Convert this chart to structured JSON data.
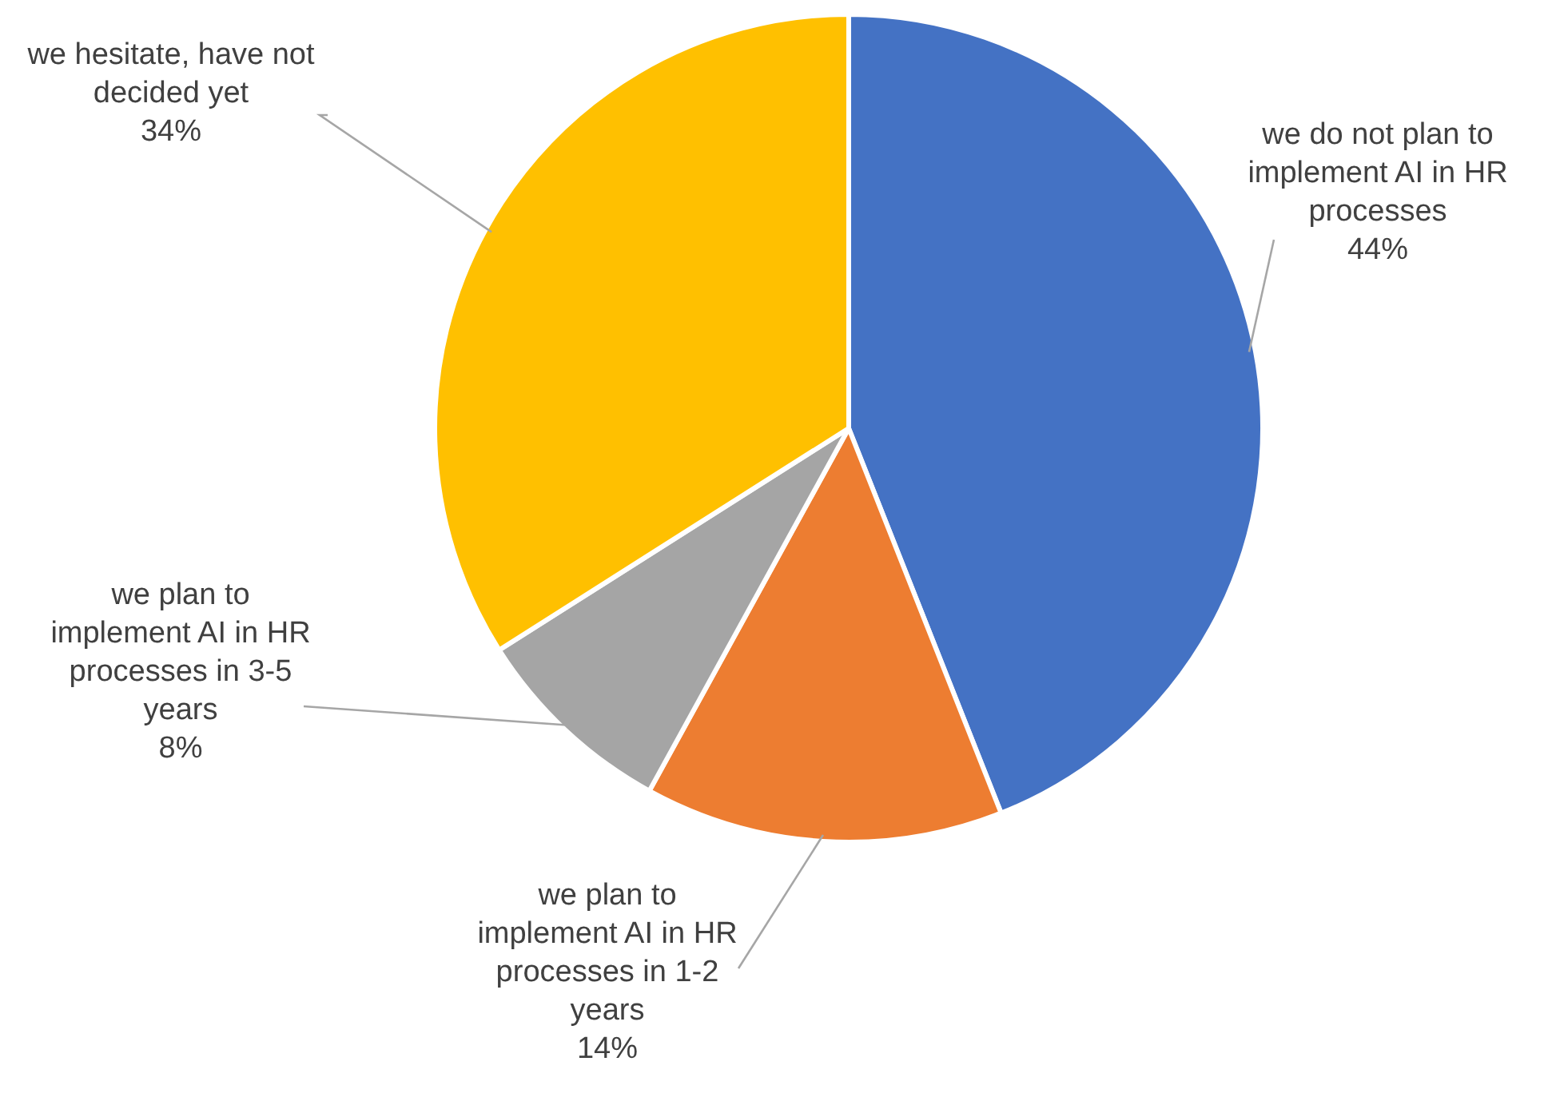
{
  "chart_data": {
    "type": "pie",
    "categories": [
      "we do not plan to implement AI in HR processes",
      "we plan to implement AI in HR processes in 1-2 years",
      "we plan to implement AI in HR processes in 3-5 years",
      "we hesitate, have not decided yet"
    ],
    "values": [
      44,
      14,
      8,
      34
    ],
    "colors": [
      "#4472c4",
      "#ed7d31",
      "#a5a5a5",
      "#ffc000"
    ],
    "value_labels": [
      "44%",
      "14%",
      "8%",
      "34%"
    ]
  }
}
